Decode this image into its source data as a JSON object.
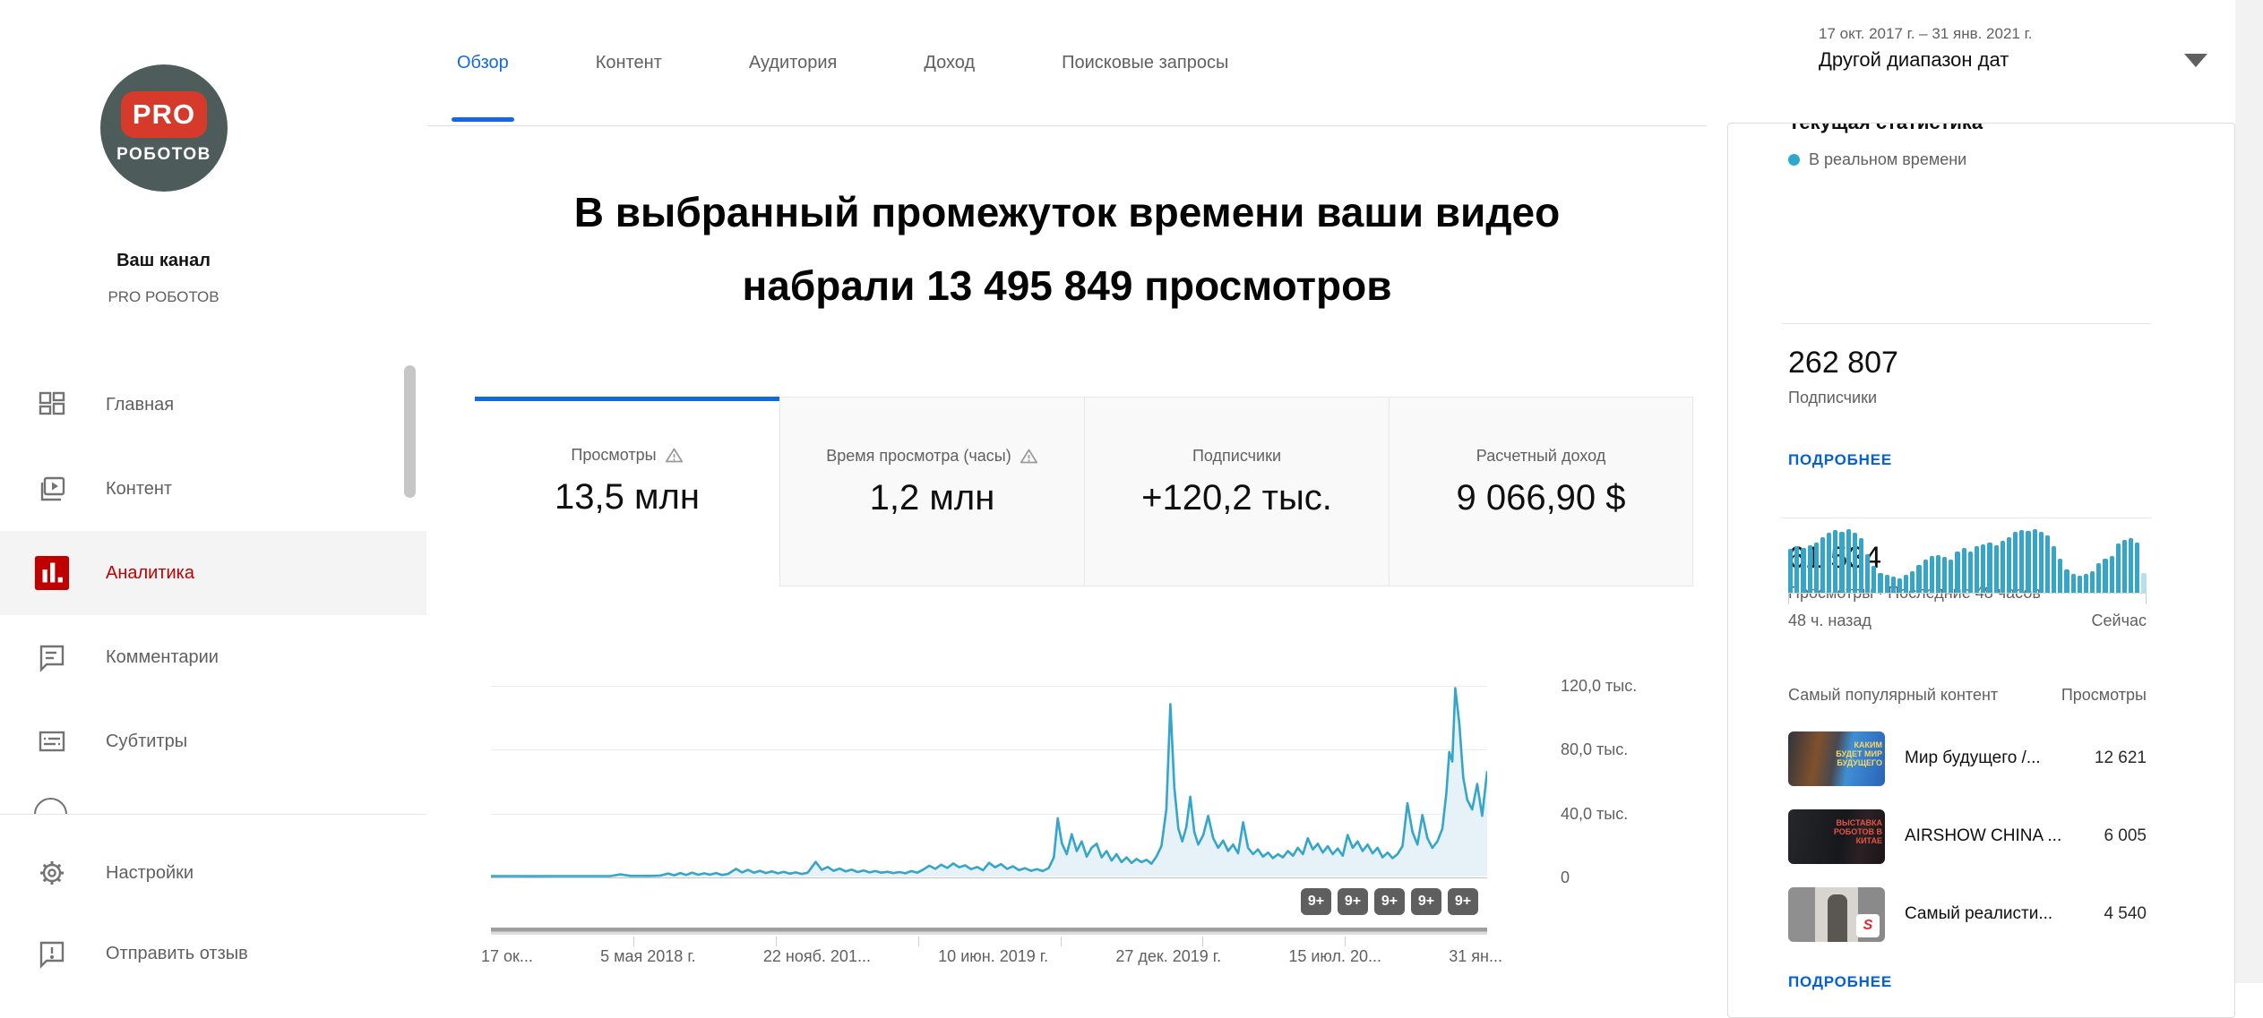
{
  "colors": {
    "accent_blue": "#065fd4",
    "tab_blue": "#1569e0",
    "brand_red": "#c00000",
    "chart_teal": "#35a5c9",
    "live_dot": "#30a7cd"
  },
  "icons": {
    "dropdown_arrow": "triangle-down",
    "live_dot": "circle",
    "warning": "triangle-exclamation",
    "sidebar": [
      "dashboard-icon",
      "content-icon",
      "analytics-icon",
      "comments-icon",
      "subtitles-icon",
      "copyright-icon-partial",
      "gear-icon",
      "feedback-icon"
    ]
  },
  "sidebar": {
    "avatar": {
      "line1": "PRO",
      "line2": "РОБОТОВ"
    },
    "channel_label": "Ваш канал",
    "channel_name": "PRO РОБОТОВ",
    "items": [
      {
        "label": "Главная",
        "active": false
      },
      {
        "label": "Контент",
        "active": false
      },
      {
        "label": "Аналитика",
        "active": true
      },
      {
        "label": "Комментарии",
        "active": false
      },
      {
        "label": "Субтитры",
        "active": false
      }
    ],
    "footer_items": [
      {
        "label": "Настройки"
      },
      {
        "label": "Отправить отзыв"
      }
    ]
  },
  "tabs": [
    {
      "label": "Обзор",
      "active": true
    },
    {
      "label": "Контент",
      "active": false
    },
    {
      "label": "Аудитория",
      "active": false
    },
    {
      "label": "Доход",
      "active": false
    },
    {
      "label": "Поисковые запросы",
      "active": false
    }
  ],
  "headline": {
    "line1": "В выбранный промежуток времени ваши видео",
    "line2": "набрали 13 495 849 просмотров"
  },
  "metrics": [
    {
      "label": "Просмотры",
      "value": "13,5 млн",
      "warning": true,
      "active": true
    },
    {
      "label": "Время просмотра (часы)",
      "value": "1,2 млн",
      "warning": true,
      "active": false
    },
    {
      "label": "Подписчики",
      "value": "+120,2 тыс.",
      "warning": false,
      "active": false
    },
    {
      "label": "Расчетный доход",
      "value": "9 066,90 $",
      "warning": false,
      "active": false
    }
  ],
  "chart": {
    "y_labels": [
      "120,0 тыс.",
      "80,0 тыс.",
      "40,0 тыс.",
      "0"
    ],
    "x_labels": [
      "17 ок...",
      "5 мая 2018 г.",
      "22 нояб. 201...",
      "10 июн. 2019 г.",
      "27 дек. 2019 г.",
      "15 июл. 20...",
      "31 ян..."
    ],
    "badges": [
      "9+",
      "9+",
      "9+",
      "9+",
      "9+"
    ]
  },
  "date_selector": {
    "range": "17 окт. 2017 г. – 31 янв. 2021 г.",
    "label": "Другой диапазон дат"
  },
  "right_panel": {
    "title": "Текущая статистика",
    "live": "В реальном времени",
    "subscribers": "262 807",
    "subscribers_label": "Подписчики",
    "more_link": "ПОДРОБНЕЕ",
    "views_48h": "61 534",
    "views_48h_label": "Просмотры · Последние 48 часов",
    "axis_left": "48 ч. назад",
    "axis_right": "Сейчас",
    "popular_title": "Самый популярный контент",
    "popular_views_label": "Просмотры",
    "videos": [
      {
        "title": "Мир будущего /...",
        "views": "12 621",
        "thumb_text": "КАКИМ БУДЕТ МИР БУДУЩЕГО"
      },
      {
        "title": "AIRSHOW CHINA ...",
        "views": "6 005",
        "thumb_text": "ВЫСТАВКА РОБОТОВ В КИТАЕ"
      },
      {
        "title": "Самый реалисти...",
        "views": "4 540",
        "thumb_text": ""
      }
    ],
    "bottom_more_link": "ПОДРОБНЕЕ"
  },
  "chart_data": [
    {
      "type": "line",
      "title": "Просмотры",
      "ylabel": "Просмотры",
      "ylim": [
        0,
        125000
      ],
      "y_ticks_k": [
        0,
        40,
        80,
        120
      ],
      "x_range": [
        "17 окт. 2017 г.",
        "31 янв. 2021 г."
      ],
      "x_tick_labels": [
        "17 ок...",
        "5 мая 2018 г.",
        "22 нояб. 201...",
        "10 июн. 2019 г.",
        "27 дек. 2019 г.",
        "15 июл. 20...",
        "31 ян..."
      ],
      "grid": true,
      "points_frac_valueK": [
        [
          0,
          0.2
        ],
        [
          0.02,
          0.3
        ],
        [
          0.04,
          0.2
        ],
        [
          0.06,
          0.3
        ],
        [
          0.08,
          0.3
        ],
        [
          0.1,
          0.3
        ],
        [
          0.12,
          0.3
        ],
        [
          0.13,
          1.4
        ],
        [
          0.14,
          0.4
        ],
        [
          0.16,
          0.4
        ],
        [
          0.17,
          0.6
        ],
        [
          0.178,
          1.9
        ],
        [
          0.184,
          0.8
        ],
        [
          0.19,
          2.2
        ],
        [
          0.196,
          1.0
        ],
        [
          0.202,
          2.4
        ],
        [
          0.208,
          1.1
        ],
        [
          0.214,
          2.0
        ],
        [
          0.22,
          1.2
        ],
        [
          0.226,
          2.2
        ],
        [
          0.232,
          1.0
        ],
        [
          0.238,
          1.6
        ],
        [
          0.246,
          4.8
        ],
        [
          0.252,
          2.6
        ],
        [
          0.258,
          4.2
        ],
        [
          0.264,
          2.4
        ],
        [
          0.27,
          3.6
        ],
        [
          0.276,
          2.2
        ],
        [
          0.282,
          3.2
        ],
        [
          0.288,
          2.0
        ],
        [
          0.294,
          3.0
        ],
        [
          0.3,
          1.8
        ],
        [
          0.306,
          2.6
        ],
        [
          0.312,
          1.6
        ],
        [
          0.318,
          2.4
        ],
        [
          0.326,
          9.2
        ],
        [
          0.332,
          4.2
        ],
        [
          0.338,
          6.0
        ],
        [
          0.344,
          3.6
        ],
        [
          0.35,
          5.0
        ],
        [
          0.356,
          3.2
        ],
        [
          0.362,
          4.4
        ],
        [
          0.368,
          2.8
        ],
        [
          0.374,
          3.8
        ],
        [
          0.38,
          2.6
        ],
        [
          0.386,
          3.4
        ],
        [
          0.392,
          2.4
        ],
        [
          0.398,
          3.0
        ],
        [
          0.404,
          2.2
        ],
        [
          0.41,
          2.8
        ],
        [
          0.416,
          2.0
        ],
        [
          0.422,
          3.4
        ],
        [
          0.428,
          2.4
        ],
        [
          0.434,
          4.4
        ],
        [
          0.44,
          6.8
        ],
        [
          0.446,
          4.8
        ],
        [
          0.452,
          7.4
        ],
        [
          0.458,
          5.4
        ],
        [
          0.464,
          8.2
        ],
        [
          0.47,
          5.8
        ],
        [
          0.476,
          7.0
        ],
        [
          0.482,
          4.6
        ],
        [
          0.488,
          6.0
        ],
        [
          0.494,
          4.0
        ],
        [
          0.5,
          8.6
        ],
        [
          0.506,
          5.8
        ],
        [
          0.512,
          7.8
        ],
        [
          0.518,
          4.8
        ],
        [
          0.524,
          6.4
        ],
        [
          0.53,
          4.0
        ],
        [
          0.536,
          5.2
        ],
        [
          0.542,
          3.6
        ],
        [
          0.548,
          4.6
        ],
        [
          0.554,
          3.4
        ],
        [
          0.56,
          5.4
        ],
        [
          0.565,
          12.0
        ],
        [
          0.569,
          36.5
        ],
        [
          0.573,
          21.0
        ],
        [
          0.578,
          14.0
        ],
        [
          0.583,
          26.5
        ],
        [
          0.588,
          16.0
        ],
        [
          0.593,
          22.0
        ],
        [
          0.598,
          12.5
        ],
        [
          0.603,
          18.0
        ],
        [
          0.608,
          20.5
        ],
        [
          0.613,
          12.0
        ],
        [
          0.618,
          16.0
        ],
        [
          0.623,
          10.0
        ],
        [
          0.628,
          14.0
        ],
        [
          0.633,
          9.0
        ],
        [
          0.638,
          12.0
        ],
        [
          0.643,
          8.5
        ],
        [
          0.648,
          11.0
        ],
        [
          0.653,
          9.0
        ],
        [
          0.658,
          10.5
        ],
        [
          0.663,
          8.0
        ],
        [
          0.668,
          12.5
        ],
        [
          0.673,
          19.0
        ],
        [
          0.678,
          42.0
        ],
        [
          0.682,
          108.0
        ],
        [
          0.686,
          56.0
        ],
        [
          0.69,
          30.0
        ],
        [
          0.694,
          22.0
        ],
        [
          0.698,
          31.0
        ],
        [
          0.702,
          50.0
        ],
        [
          0.706,
          28.0
        ],
        [
          0.71,
          20.0
        ],
        [
          0.715,
          26.0
        ],
        [
          0.72,
          38.0
        ],
        [
          0.725,
          24.0
        ],
        [
          0.73,
          18.0
        ],
        [
          0.735,
          22.5
        ],
        [
          0.74,
          16.0
        ],
        [
          0.745,
          20.0
        ],
        [
          0.75,
          14.5
        ],
        [
          0.755,
          34.0
        ],
        [
          0.76,
          18.0
        ],
        [
          0.765,
          14.0
        ],
        [
          0.77,
          17.0
        ],
        [
          0.775,
          12.5
        ],
        [
          0.78,
          15.0
        ],
        [
          0.785,
          11.5
        ],
        [
          0.79,
          14.0
        ],
        [
          0.795,
          12.0
        ],
        [
          0.8,
          16.0
        ],
        [
          0.805,
          13.0
        ],
        [
          0.81,
          18.0
        ],
        [
          0.815,
          14.0
        ],
        [
          0.82,
          24.0
        ],
        [
          0.825,
          17.0
        ],
        [
          0.83,
          20.5
        ],
        [
          0.835,
          15.0
        ],
        [
          0.84,
          19.0
        ],
        [
          0.845,
          14.0
        ],
        [
          0.85,
          17.5
        ],
        [
          0.855,
          13.0
        ],
        [
          0.86,
          26.0
        ],
        [
          0.865,
          18.0
        ],
        [
          0.87,
          22.0
        ],
        [
          0.875,
          16.0
        ],
        [
          0.88,
          20.0
        ],
        [
          0.885,
          14.5
        ],
        [
          0.89,
          18.0
        ],
        [
          0.895,
          12.0
        ],
        [
          0.9,
          15.0
        ],
        [
          0.905,
          11.5
        ],
        [
          0.91,
          14.0
        ],
        [
          0.915,
          19.0
        ],
        [
          0.92,
          46.0
        ],
        [
          0.925,
          28.0
        ],
        [
          0.93,
          20.0
        ],
        [
          0.935,
          38.5
        ],
        [
          0.94,
          24.0
        ],
        [
          0.945,
          18.0
        ],
        [
          0.95,
          22.0
        ],
        [
          0.955,
          30.0
        ],
        [
          0.959,
          52.0
        ],
        [
          0.962,
          78.0
        ],
        [
          0.965,
          72.0
        ],
        [
          0.968,
          118.0
        ],
        [
          0.972,
          96.0
        ],
        [
          0.976,
          62.0
        ],
        [
          0.98,
          48.0
        ],
        [
          0.985,
          42.0
        ],
        [
          0.99,
          58.0
        ],
        [
          0.995,
          38.0
        ],
        [
          1,
          66.0
        ]
      ]
    },
    {
      "type": "bar",
      "title": "Просмотры · Последние 48 часов",
      "x_range": [
        "48 ч. назад",
        "Сейчас"
      ],
      "last_bar_partial": true,
      "values_relative": [
        0.66,
        0.7,
        0.68,
        0.72,
        0.76,
        0.84,
        0.9,
        0.94,
        0.92,
        0.96,
        0.9,
        0.82,
        0.58,
        0.4,
        0.3,
        0.27,
        0.24,
        0.22,
        0.27,
        0.33,
        0.42,
        0.5,
        0.55,
        0.57,
        0.54,
        0.5,
        0.62,
        0.68,
        0.62,
        0.7,
        0.73,
        0.75,
        0.72,
        0.78,
        0.84,
        0.92,
        0.95,
        0.93,
        0.96,
        0.92,
        0.86,
        0.7,
        0.52,
        0.35,
        0.28,
        0.25,
        0.28,
        0.33,
        0.45,
        0.52,
        0.56,
        0.74,
        0.8,
        0.82,
        0.76,
        0.3
      ]
    }
  ]
}
